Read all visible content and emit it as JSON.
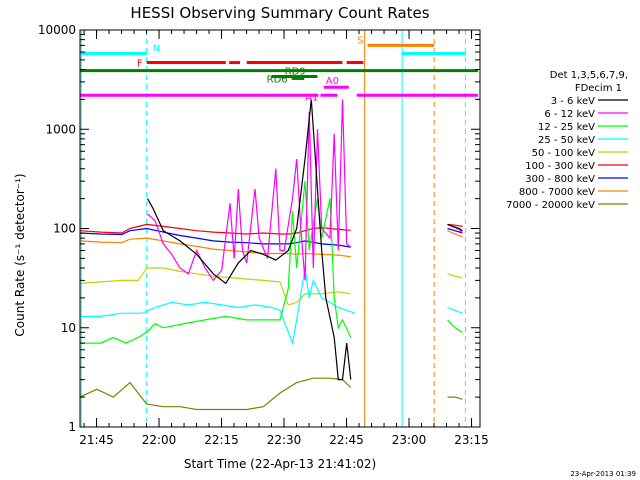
{
  "chart_data": {
    "type": "line",
    "title": "HESSI Observing Summary Count Rates",
    "xlabel": "Start Time (22-Apr-13 21:41:02)",
    "ylabel": "Count Rate (s⁻¹ detector⁻¹)",
    "ylog": true,
    "ylim": [
      1,
      10000
    ],
    "xlim_minutes": [
      0,
      96
    ],
    "x_ticks": [
      {
        "label": "21:45",
        "minutes": 3.97
      },
      {
        "label": "22:00",
        "minutes": 18.97
      },
      {
        "label": "22:15",
        "minutes": 33.97
      },
      {
        "label": "22:30",
        "minutes": 48.97
      },
      {
        "label": "22:45",
        "minutes": 63.97
      },
      {
        "label": "23:00",
        "minutes": 78.97
      },
      {
        "label": "23:15",
        "minutes": 93.97
      }
    ],
    "y_ticks": [
      {
        "label": "1",
        "value": 1
      },
      {
        "label": "10",
        "value": 10
      },
      {
        "label": "100",
        "value": 100
      },
      {
        "label": "1000",
        "value": 1000
      },
      {
        "label": "10000",
        "value": 10000
      }
    ],
    "legend": {
      "placement": "right",
      "header": [
        "Det 1,3,5,6,7,9,",
        "FDecim 1"
      ]
    },
    "series": [
      {
        "name": "3 - 6 keV",
        "color": "#000000",
        "points": [
          [
            0,
            null
          ],
          [
            16,
            null
          ],
          [
            16.2,
            200
          ],
          [
            17.5,
            160
          ],
          [
            20,
            95
          ],
          [
            24,
            75
          ],
          [
            28,
            55
          ],
          [
            32,
            35
          ],
          [
            35,
            28
          ],
          [
            38,
            45
          ],
          [
            41,
            60
          ],
          [
            44,
            55
          ],
          [
            47,
            48
          ],
          [
            50,
            60
          ],
          [
            52,
            100
          ],
          [
            54,
            500
          ],
          [
            55.5,
            2000
          ],
          [
            56.5,
            500
          ],
          [
            58,
            60
          ],
          [
            59,
            20
          ],
          [
            61,
            8
          ],
          [
            62,
            3
          ],
          [
            63,
            3
          ],
          [
            64,
            7
          ],
          [
            65,
            3
          ],
          [
            66,
            null
          ],
          [
            88,
            null
          ],
          [
            88.2,
            110
          ],
          [
            91,
            100
          ],
          [
            91.8,
            95
          ]
        ]
      },
      {
        "name": "6 - 12 keV",
        "color": "#ff00ff",
        "points": [
          [
            0,
            null
          ],
          [
            16,
            null
          ],
          [
            16.2,
            140
          ],
          [
            18,
            120
          ],
          [
            20,
            70
          ],
          [
            22,
            55
          ],
          [
            24,
            40
          ],
          [
            26,
            35
          ],
          [
            28,
            60
          ],
          [
            30,
            40
          ],
          [
            32,
            30
          ],
          [
            34,
            38
          ],
          [
            36,
            180
          ],
          [
            37,
            50
          ],
          [
            38,
            250
          ],
          [
            39,
            60
          ],
          [
            40,
            45
          ],
          [
            42,
            250
          ],
          [
            43,
            80
          ],
          [
            45,
            50
          ],
          [
            47,
            400
          ],
          [
            48,
            60
          ],
          [
            49,
            60
          ],
          [
            51,
            200
          ],
          [
            52,
            500
          ],
          [
            53,
            100
          ],
          [
            54,
            30
          ],
          [
            55,
            1500
          ],
          [
            56,
            40
          ],
          [
            57,
            1000
          ],
          [
            58,
            100
          ],
          [
            60,
            80
          ],
          [
            61,
            900
          ],
          [
            62,
            60
          ],
          [
            63,
            2000
          ],
          [
            64,
            70
          ],
          [
            65,
            65
          ],
          [
            66,
            null
          ],
          [
            88,
            null
          ],
          [
            88.2,
            110
          ],
          [
            91,
            98
          ],
          [
            91.8,
            90
          ]
        ]
      },
      {
        "name": "12 - 25 keV",
        "color": "#00ff00",
        "points": [
          [
            0,
            7
          ],
          [
            5,
            7
          ],
          [
            8,
            8
          ],
          [
            11,
            7
          ],
          [
            14,
            8
          ],
          [
            16,
            9
          ],
          [
            18,
            11
          ],
          [
            20,
            10
          ],
          [
            25,
            11
          ],
          [
            30,
            12
          ],
          [
            35,
            13
          ],
          [
            40,
            12
          ],
          [
            45,
            12
          ],
          [
            48,
            12
          ],
          [
            50,
            25
          ],
          [
            51,
            150
          ],
          [
            52,
            40
          ],
          [
            54,
            300
          ],
          [
            55,
            60
          ],
          [
            57,
            200
          ],
          [
            58,
            80
          ],
          [
            60,
            200
          ],
          [
            61,
            20
          ],
          [
            62,
            10
          ],
          [
            63,
            12
          ],
          [
            65,
            8
          ],
          [
            66,
            null
          ],
          [
            88,
            null
          ],
          [
            88.2,
            12
          ],
          [
            90,
            10
          ],
          [
            91.8,
            9
          ]
        ]
      },
      {
        "name": "25 - 50 keV",
        "color": "#00ffff",
        "points": [
          [
            0,
            13
          ],
          [
            5,
            13
          ],
          [
            10,
            14
          ],
          [
            15,
            14
          ],
          [
            18,
            16
          ],
          [
            22,
            18
          ],
          [
            26,
            17
          ],
          [
            30,
            18
          ],
          [
            34,
            17
          ],
          [
            38,
            16
          ],
          [
            42,
            17
          ],
          [
            46,
            16
          ],
          [
            48,
            15
          ],
          [
            50,
            9
          ],
          [
            51,
            7
          ],
          [
            52,
            12
          ],
          [
            54,
            40
          ],
          [
            55,
            20
          ],
          [
            56,
            30
          ],
          [
            58,
            20
          ],
          [
            60,
            18
          ],
          [
            62,
            16
          ],
          [
            64,
            15
          ],
          [
            66,
            14
          ],
          [
            66.2,
            null
          ],
          [
            88,
            null
          ],
          [
            88.2,
            16
          ],
          [
            90,
            15
          ],
          [
            91.8,
            14
          ]
        ]
      },
      {
        "name": "50 - 100 keV",
        "color": "#cccc00",
        "points": [
          [
            0,
            28
          ],
          [
            5,
            29
          ],
          [
            10,
            30
          ],
          [
            14,
            30
          ],
          [
            16,
            40
          ],
          [
            20,
            40
          ],
          [
            24,
            37
          ],
          [
            28,
            35
          ],
          [
            32,
            33
          ],
          [
            36,
            32
          ],
          [
            40,
            31
          ],
          [
            44,
            30
          ],
          [
            48,
            29
          ],
          [
            50,
            17
          ],
          [
            52,
            18
          ],
          [
            54,
            22
          ],
          [
            58,
            22
          ],
          [
            62,
            23
          ],
          [
            65,
            22
          ],
          [
            66,
            null
          ],
          [
            88,
            null
          ],
          [
            88.2,
            35
          ],
          [
            90,
            33
          ],
          [
            91.8,
            32
          ]
        ]
      },
      {
        "name": "100 - 300 keV",
        "color": "#ff0000",
        "points": [
          [
            0,
            95
          ],
          [
            5,
            92
          ],
          [
            10,
            90
          ],
          [
            12,
            100
          ],
          [
            16,
            110
          ],
          [
            20,
            105
          ],
          [
            24,
            100
          ],
          [
            28,
            95
          ],
          [
            32,
            92
          ],
          [
            36,
            90
          ],
          [
            40,
            88
          ],
          [
            44,
            90
          ],
          [
            48,
            88
          ],
          [
            50,
            88
          ],
          [
            52,
            90
          ],
          [
            54,
            95
          ],
          [
            56,
            100
          ],
          [
            58,
            102
          ],
          [
            60,
            100
          ],
          [
            62,
            98
          ],
          [
            65,
            96
          ],
          [
            66,
            null
          ],
          [
            88,
            null
          ],
          [
            88.2,
            110
          ],
          [
            90,
            108
          ],
          [
            91.8,
            105
          ]
        ]
      },
      {
        "name": "300 - 800 keV",
        "color": "#0000ff",
        "points": [
          [
            0,
            90
          ],
          [
            5,
            88
          ],
          [
            10,
            87
          ],
          [
            12,
            95
          ],
          [
            16,
            100
          ],
          [
            20,
            92
          ],
          [
            24,
            85
          ],
          [
            28,
            80
          ],
          [
            32,
            75
          ],
          [
            36,
            73
          ],
          [
            40,
            72
          ],
          [
            44,
            70
          ],
          [
            48,
            70
          ],
          [
            50,
            70
          ],
          [
            52,
            72
          ],
          [
            54,
            75
          ],
          [
            58,
            70
          ],
          [
            62,
            68
          ],
          [
            65,
            65
          ],
          [
            66,
            null
          ],
          [
            88,
            null
          ],
          [
            88.2,
            100
          ],
          [
            90,
            95
          ],
          [
            91.8,
            90
          ]
        ]
      },
      {
        "name": "800 - 7000 keV",
        "color": "#ff8000",
        "points": [
          [
            0,
            75
          ],
          [
            5,
            73
          ],
          [
            10,
            72
          ],
          [
            12,
            78
          ],
          [
            16,
            80
          ],
          [
            20,
            75
          ],
          [
            24,
            70
          ],
          [
            28,
            66
          ],
          [
            32,
            62
          ],
          [
            36,
            60
          ],
          [
            40,
            58
          ],
          [
            44,
            56
          ],
          [
            48,
            56
          ],
          [
            50,
            56
          ],
          [
            52,
            55
          ],
          [
            54,
            56
          ],
          [
            58,
            55
          ],
          [
            62,
            54
          ],
          [
            65,
            52
          ],
          [
            66,
            null
          ],
          [
            88,
            null
          ],
          [
            88.2,
            95
          ],
          [
            90,
            88
          ],
          [
            91.8,
            82
          ]
        ]
      },
      {
        "name": "7000 - 20000 keV",
        "color": "#808000",
        "points": [
          [
            0,
            2
          ],
          [
            4,
            2.4
          ],
          [
            8,
            2
          ],
          [
            12,
            2.8
          ],
          [
            16,
            1.7
          ],
          [
            20,
            1.6
          ],
          [
            24,
            1.6
          ],
          [
            28,
            1.5
          ],
          [
            32,
            1.5
          ],
          [
            36,
            1.5
          ],
          [
            40,
            1.5
          ],
          [
            44,
            1.6
          ],
          [
            48,
            2.2
          ],
          [
            52,
            2.8
          ],
          [
            56,
            3.1
          ],
          [
            60,
            3.1
          ],
          [
            63,
            3.0
          ],
          [
            65,
            2.5
          ],
          [
            66,
            null
          ],
          [
            88,
            null
          ],
          [
            88.2,
            2.0
          ],
          [
            90,
            2.0
          ],
          [
            91.8,
            1.9
          ]
        ]
      }
    ],
    "annotations": [
      {
        "label": "N",
        "color": "#00ffff",
        "bars": [
          [
            0,
            16
          ]
        ],
        "y": 5800
      },
      {
        "label": "",
        "color": "#00ffff",
        "bars": [
          [
            77.3,
            92.5
          ]
        ],
        "y": 5800
      },
      {
        "label": "F",
        "color": "#ff0000",
        "bars": [
          [
            16,
            35
          ],
          [
            35.8,
            38.4
          ],
          [
            40,
            63
          ],
          [
            64,
            68
          ]
        ],
        "y": 4700
      },
      {
        "label": "S",
        "color": "#ff8000",
        "bars": [
          [
            69,
            85
          ]
        ],
        "y": 7000
      },
      {
        "label": "",
        "color": "#008000",
        "bars": [
          [
            0,
            95.5
          ]
        ],
        "y": 3900
      },
      {
        "label": "RD9",
        "color": "#008000",
        "bars": [
          [
            46,
            57
          ]
        ],
        "y": 3400
      },
      {
        "label": "RD6",
        "color": "#008000",
        "bars": [
          [
            50.8,
            53.8
          ]
        ],
        "y": 3250
      },
      {
        "label": "A0",
        "color": "#ff00ff",
        "bars": [
          [
            58.5,
            64.5
          ]
        ],
        "y": 2650
      },
      {
        "label": "A1",
        "color": "#ff00ff",
        "bars": [
          [
            0,
            57.2
          ],
          [
            57.7,
            61.8
          ],
          [
            66.4,
            95.5
          ]
        ],
        "y": 2200
      }
    ],
    "vertical_lines": [
      {
        "minutes": 16,
        "color": "#00ffff",
        "style": "dash"
      },
      {
        "minutes": 68.3,
        "color": "#ff8000",
        "style": "solid"
      },
      {
        "minutes": 77.3,
        "color": "#00ffff",
        "style": "solid"
      },
      {
        "minutes": 85,
        "color": "#ff8000",
        "style": "dash"
      },
      {
        "minutes": 92.5,
        "color": "#00ffff",
        "style": "dash"
      },
      {
        "minutes": 0.3,
        "color": "#00ffff",
        "style": "solid"
      }
    ],
    "footer_date": "23-Apr-2013 01:39"
  }
}
